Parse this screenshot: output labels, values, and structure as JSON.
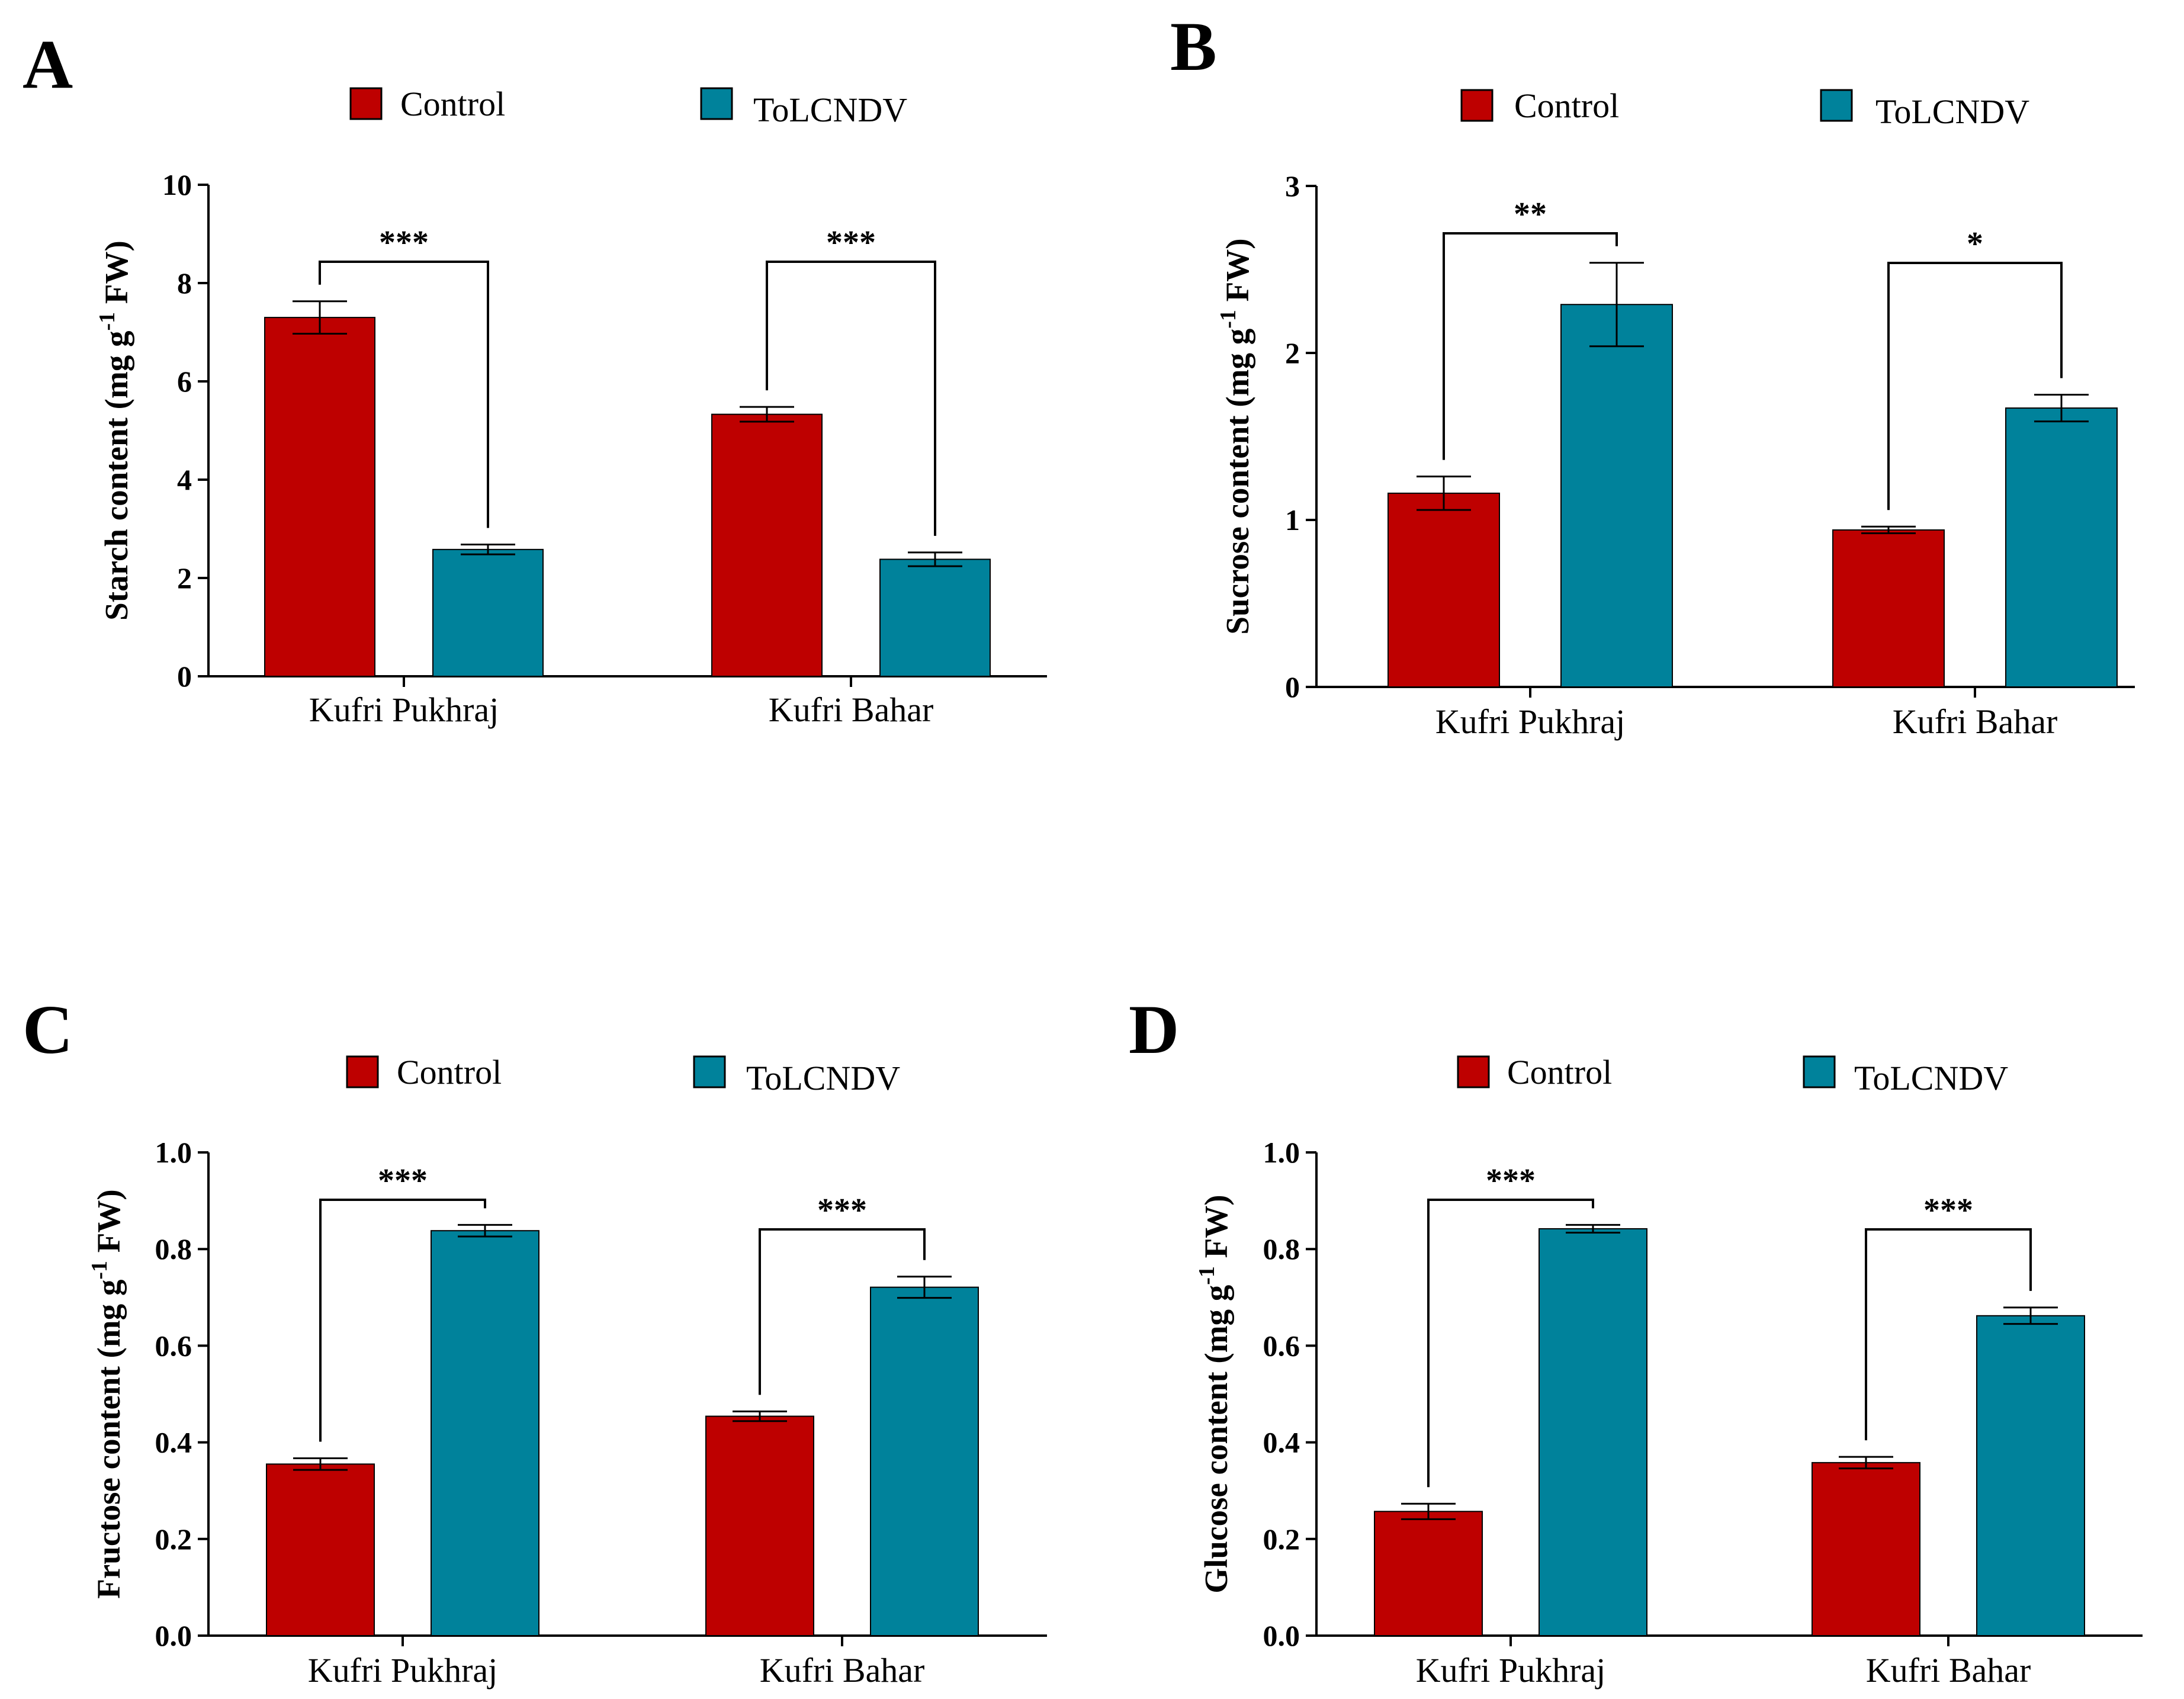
{
  "colors": {
    "control": "#be0000",
    "tolcndv": "#00829b",
    "axis": "#000000"
  },
  "legend": [
    "Control",
    "ToLCNDV"
  ],
  "chart_data": [
    {
      "panel": "A",
      "type": "bar",
      "categories": [
        "Kufri Pukhraj",
        "Kufri Bahar"
      ],
      "series": [
        {
          "name": "Control",
          "values": [
            7.3,
            5.33
          ],
          "errors": [
            0.33,
            0.15
          ]
        },
        {
          "name": "ToLCNDV",
          "values": [
            2.58,
            2.38
          ],
          "errors": [
            0.1,
            0.14
          ]
        }
      ],
      "ylabel": {
        "main": "Starch content (mg g",
        "sup": "-1",
        "post": " FW)"
      },
      "ylim": [
        0,
        10
      ],
      "yticks": [
        0,
        2,
        4,
        6,
        8,
        10
      ],
      "ytick_labels": [
        "0",
        "2",
        "4",
        "6",
        "8",
        "10"
      ],
      "significance": [
        "***",
        "***"
      ]
    },
    {
      "panel": "B",
      "type": "bar",
      "categories": [
        "Kufri Pukhraj",
        "Kufri Bahar"
      ],
      "series": [
        {
          "name": "Control",
          "values": [
            1.16,
            0.94
          ],
          "errors": [
            0.1,
            0.02
          ]
        },
        {
          "name": "ToLCNDV",
          "values": [
            2.29,
            1.67
          ],
          "errors": [
            0.25,
            0.08
          ]
        }
      ],
      "ylabel": {
        "main": "Sucrose content (mg g",
        "sup": "-1",
        "post": " FW)"
      },
      "ylim": [
        0,
        3
      ],
      "yticks": [
        0,
        1,
        2,
        3
      ],
      "ytick_labels": [
        "0",
        "1",
        "2",
        "3"
      ],
      "significance": [
        "**",
        "*"
      ]
    },
    {
      "panel": "C",
      "type": "bar",
      "categories": [
        "Kufri Pukhraj",
        "Kufri Bahar"
      ],
      "series": [
        {
          "name": "Control",
          "values": [
            0.355,
            0.454
          ],
          "errors": [
            0.012,
            0.01
          ]
        },
        {
          "name": "ToLCNDV",
          "values": [
            0.838,
            0.721
          ],
          "errors": [
            0.012,
            0.022
          ]
        }
      ],
      "ylabel": {
        "main": "Fructose content (mg g",
        "sup": "-1",
        "post": " FW)"
      },
      "ylim": [
        0,
        1
      ],
      "yticks": [
        0,
        0.2,
        0.4,
        0.6,
        0.8,
        1.0
      ],
      "ytick_labels": [
        "0.0",
        "0.2",
        "0.4",
        "0.6",
        "0.8",
        "1.0"
      ],
      "significance": [
        "***",
        "***"
      ]
    },
    {
      "panel": "D",
      "type": "bar",
      "categories": [
        "Kufri Pukhraj",
        "Kufri Bahar"
      ],
      "series": [
        {
          "name": "Control",
          "values": [
            0.257,
            0.358
          ],
          "errors": [
            0.016,
            0.012
          ]
        },
        {
          "name": "ToLCNDV",
          "values": [
            0.842,
            0.662
          ],
          "errors": [
            0.008,
            0.017
          ]
        }
      ],
      "ylabel": {
        "main": "Glucose content (mg g",
        "sup": "-1",
        "post": " FW)"
      },
      "ylim": [
        0,
        1
      ],
      "yticks": [
        0,
        0.2,
        0.4,
        0.6,
        0.8,
        1.0
      ],
      "ytick_labels": [
        "0.0",
        "0.2",
        "0.4",
        "0.6",
        "0.8",
        "1.0"
      ],
      "significance": [
        "***",
        "***"
      ]
    }
  ]
}
